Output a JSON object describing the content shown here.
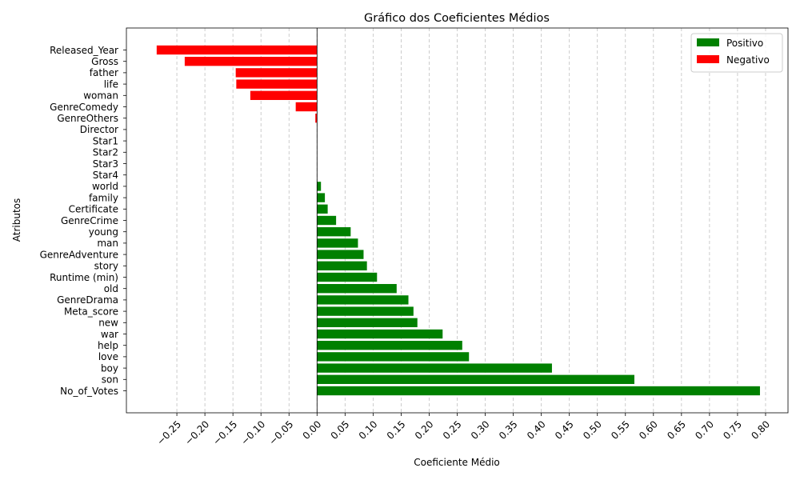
{
  "chart_data": {
    "type": "bar",
    "orientation": "horizontal",
    "title": "Gráfico dos Coeficientes Médios",
    "xlabel": "Coeficiente Médio",
    "ylabel": "Atributos",
    "xlim": [
      -0.34,
      0.84
    ],
    "grid": "x, dashed",
    "legend_position": "top-right",
    "categories": [
      "Released_Year",
      "Gross",
      "father",
      "life",
      "woman",
      "GenreComedy",
      "GenreOthers",
      "Director",
      "Star1",
      "Star2",
      "Star3",
      "Star4",
      "world",
      "family",
      "Certificate",
      "GenreCrime",
      "young",
      "man",
      "GenreAdventure",
      "story",
      "Runtime (min)",
      "old",
      "GenreDrama",
      "Meta_score",
      "new",
      "war",
      "help",
      "love",
      "boy",
      "son",
      "No_of_Votes"
    ],
    "values": [
      -0.286,
      -0.236,
      -0.145,
      -0.144,
      -0.119,
      -0.038,
      -0.003,
      0,
      0,
      0,
      0,
      0,
      0.007,
      0.014,
      0.019,
      0.034,
      0.06,
      0.073,
      0.083,
      0.089,
      0.107,
      0.142,
      0.163,
      0.172,
      0.179,
      0.224,
      0.259,
      0.271,
      0.419,
      0.566,
      0.79
    ],
    "xticks": [
      "−0.25",
      "−0.20",
      "−0.15",
      "−0.10",
      "−0.05",
      "0.00",
      "0.05",
      "0.10",
      "0.15",
      "0.20",
      "0.25",
      "0.30",
      "0.35",
      "0.40",
      "0.45",
      "0.50",
      "0.55",
      "0.60",
      "0.65",
      "0.70",
      "0.75",
      "0.80"
    ],
    "xtick_values": [
      -0.25,
      -0.2,
      -0.15,
      -0.1,
      -0.05,
      0,
      0.05,
      0.1,
      0.15,
      0.2,
      0.25,
      0.3,
      0.35,
      0.4,
      0.45,
      0.5,
      0.55,
      0.6,
      0.65,
      0.7,
      0.75,
      0.8
    ],
    "legend": [
      {
        "label": "Positivo",
        "color": "#008000"
      },
      {
        "label": "Negativo",
        "color": "#ff0000"
      }
    ],
    "colors": {
      "positive": "#008000",
      "negative": "#ff0000"
    }
  }
}
